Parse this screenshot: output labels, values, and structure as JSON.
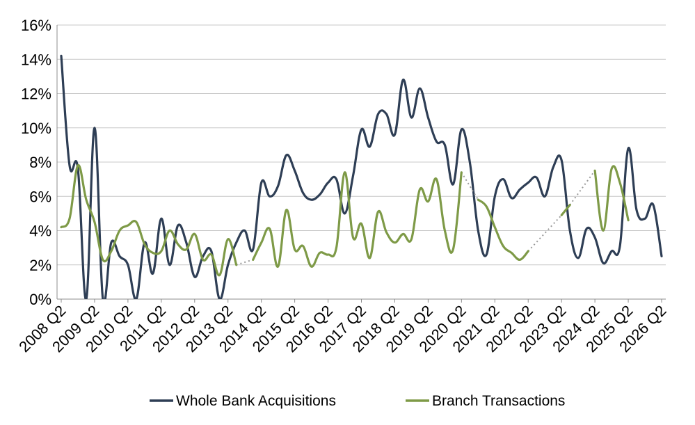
{
  "chart_data": {
    "type": "line",
    "title": "",
    "xlabel": "",
    "ylabel": "",
    "ylim": [
      0,
      16
    ],
    "yticks": [
      "0%",
      "2%",
      "4%",
      "6%",
      "8%",
      "10%",
      "12%",
      "14%",
      "16%"
    ],
    "xticks": [
      "2008 Q2",
      "2009 Q2",
      "2010 Q2",
      "2011 Q2",
      "2012 Q2",
      "2013 Q2",
      "2014 Q2",
      "2015 Q2",
      "2016 Q2",
      "2017 Q2",
      "2018 Q2",
      "2019 Q2",
      "2020 Q2",
      "2021 Q2",
      "2022 Q2",
      "2023 Q2",
      "2024 Q2",
      "2025 Q2",
      "2026 Q2"
    ],
    "grid": true,
    "legend_position": "bottom",
    "series": [
      {
        "name": "Whole Bank Acquisitions",
        "color": "#2e3e55",
        "points": [
          [
            "2008 Q2",
            14.2
          ],
          [
            "2008 Q3",
            7.8
          ],
          [
            "2008 Q4",
            7.6
          ],
          [
            "2009 Q1",
            -0.5
          ],
          [
            "2009 Q2",
            10.0
          ],
          [
            "2009 Q3",
            -0.5
          ],
          [
            "2009 Q4",
            3.3
          ],
          [
            "2010 Q1",
            2.5
          ],
          [
            "2010 Q2",
            2.0
          ],
          [
            "2010 Q3",
            -0.5
          ],
          [
            "2010 Q4",
            3.3
          ],
          [
            "2011 Q1",
            1.5
          ],
          [
            "2011 Q2",
            4.7
          ],
          [
            "2011 Q3",
            2.0
          ],
          [
            "2011 Q4",
            4.3
          ],
          [
            "2012 Q1",
            3.3
          ],
          [
            "2012 Q2",
            1.3
          ],
          [
            "2012 Q3",
            2.5
          ],
          [
            "2012 Q4",
            2.8
          ],
          [
            "2013 Q1",
            -0.5
          ],
          [
            "2013 Q2",
            2.0
          ],
          [
            "2013 Q3",
            3.3
          ],
          [
            "2013 Q4",
            4.0
          ],
          [
            "2014 Q1",
            2.9
          ],
          [
            "2014 Q2",
            6.8
          ],
          [
            "2014 Q3",
            6.0
          ],
          [
            "2014 Q4",
            6.6
          ],
          [
            "2015 Q1",
            8.4
          ],
          [
            "2015 Q2",
            7.5
          ],
          [
            "2015 Q3",
            6.2
          ],
          [
            "2015 Q4",
            5.8
          ],
          [
            "2016 Q1",
            6.1
          ],
          [
            "2016 Q2",
            6.8
          ],
          [
            "2016 Q3",
            7.0
          ],
          [
            "2016 Q4",
            5.0
          ],
          [
            "2017 Q1",
            7.2
          ],
          [
            "2017 Q2",
            9.9
          ],
          [
            "2017 Q3",
            8.9
          ],
          [
            "2017 Q4",
            10.8
          ],
          [
            "2018 Q1",
            10.8
          ],
          [
            "2018 Q2",
            9.6
          ],
          [
            "2018 Q3",
            12.8
          ],
          [
            "2018 Q4",
            10.6
          ],
          [
            "2019 Q1",
            12.3
          ],
          [
            "2019 Q2",
            10.6
          ],
          [
            "2019 Q3",
            9.2
          ],
          [
            "2019 Q4",
            9.0
          ],
          [
            "2020 Q1",
            6.7
          ],
          [
            "2020 Q2",
            9.9
          ],
          [
            "2020 Q3",
            8.0
          ],
          [
            "2020 Q4",
            4.0
          ],
          [
            "2021 Q1",
            2.6
          ],
          [
            "2021 Q2",
            6.0
          ],
          [
            "2021 Q3",
            7.0
          ],
          [
            "2021 Q4",
            5.9
          ],
          [
            "2022 Q1",
            6.4
          ],
          [
            "2022 Q2",
            6.8
          ],
          [
            "2022 Q3",
            7.1
          ],
          [
            "2022 Q4",
            6.0
          ],
          [
            "2023 Q1",
            7.7
          ],
          [
            "2023 Q2",
            8.1
          ],
          [
            "2023 Q3",
            4.0
          ],
          [
            "2023 Q4",
            2.4
          ],
          [
            "2024 Q1",
            4.1
          ],
          [
            "2024 Q2",
            3.6
          ],
          [
            "2024 Q3",
            2.1
          ],
          [
            "2024 Q4",
            2.8
          ],
          [
            "2025 Q1",
            3.1
          ],
          [
            "2025 Q2",
            8.8
          ],
          [
            "2025 Q3",
            5.2
          ],
          [
            "2025 Q4",
            4.7
          ],
          [
            "2026 Q1",
            5.5
          ],
          [
            "2026 Q2",
            2.5
          ]
        ]
      },
      {
        "name": "Branch Transactions",
        "color": "#7e9a47",
        "points": [
          [
            "2008 Q2",
            4.2
          ],
          [
            "2008 Q3",
            4.7
          ],
          [
            "2008 Q4",
            7.8
          ],
          [
            "2009 Q1",
            5.8
          ],
          [
            "2009 Q2",
            4.5
          ],
          [
            "2009 Q3",
            2.3
          ],
          [
            "2009 Q4",
            2.8
          ],
          [
            "2010 Q1",
            4.0
          ],
          [
            "2010 Q2",
            4.3
          ],
          [
            "2010 Q3",
            4.5
          ],
          [
            "2010 Q4",
            3.2
          ],
          [
            "2011 Q1",
            2.7
          ],
          [
            "2011 Q2",
            2.8
          ],
          [
            "2011 Q3",
            4.0
          ],
          [
            "2011 Q4",
            3.2
          ],
          [
            "2012 Q1",
            2.9
          ],
          [
            "2012 Q2",
            3.8
          ],
          [
            "2012 Q3",
            2.3
          ],
          [
            "2012 Q4",
            2.6
          ],
          [
            "2013 Q1",
            1.4
          ],
          [
            "2013 Q2",
            3.5
          ],
          [
            "2013 Q3",
            2.0
          ],
          [
            "2013 Q4",
            null
          ],
          [
            "2014 Q1",
            2.3
          ],
          [
            "2014 Q2",
            3.3
          ],
          [
            "2014 Q3",
            4.1
          ],
          [
            "2014 Q4",
            1.9
          ],
          [
            "2015 Q1",
            5.2
          ],
          [
            "2015 Q2",
            2.9
          ],
          [
            "2015 Q3",
            3.1
          ],
          [
            "2015 Q4",
            1.9
          ],
          [
            "2016 Q1",
            2.7
          ],
          [
            "2016 Q2",
            2.6
          ],
          [
            "2016 Q3",
            3.0
          ],
          [
            "2016 Q4",
            7.4
          ],
          [
            "2017 Q1",
            3.6
          ],
          [
            "2017 Q2",
            4.4
          ],
          [
            "2017 Q3",
            2.4
          ],
          [
            "2017 Q4",
            5.1
          ],
          [
            "2018 Q1",
            3.9
          ],
          [
            "2018 Q2",
            3.3
          ],
          [
            "2018 Q3",
            3.8
          ],
          [
            "2018 Q4",
            3.5
          ],
          [
            "2019 Q1",
            6.4
          ],
          [
            "2019 Q2",
            5.7
          ],
          [
            "2019 Q3",
            7.0
          ],
          [
            "2019 Q4",
            4.0
          ],
          [
            "2020 Q1",
            2.9
          ],
          [
            "2020 Q2",
            7.4
          ],
          [
            "2020 Q3",
            null
          ],
          [
            "2020 Q4",
            5.8
          ],
          [
            "2021 Q1",
            5.4
          ],
          [
            "2021 Q2",
            4.2
          ],
          [
            "2021 Q3",
            3.1
          ],
          [
            "2021 Q4",
            2.7
          ],
          [
            "2022 Q1",
            2.3
          ],
          [
            "2022 Q2",
            2.8
          ],
          [
            "2022 Q3",
            null
          ],
          [
            "2022 Q4",
            null
          ],
          [
            "2023 Q1",
            null
          ],
          [
            "2023 Q2",
            4.9
          ],
          [
            "2023 Q3",
            5.5
          ],
          [
            "2023 Q4",
            null
          ],
          [
            "2024 Q1",
            null
          ],
          [
            "2024 Q2",
            7.5
          ],
          [
            "2024 Q3",
            4.0
          ],
          [
            "2024 Q4",
            7.6
          ],
          [
            "2025 Q1",
            6.8
          ],
          [
            "2025 Q2",
            4.6
          ]
        ]
      }
    ]
  }
}
